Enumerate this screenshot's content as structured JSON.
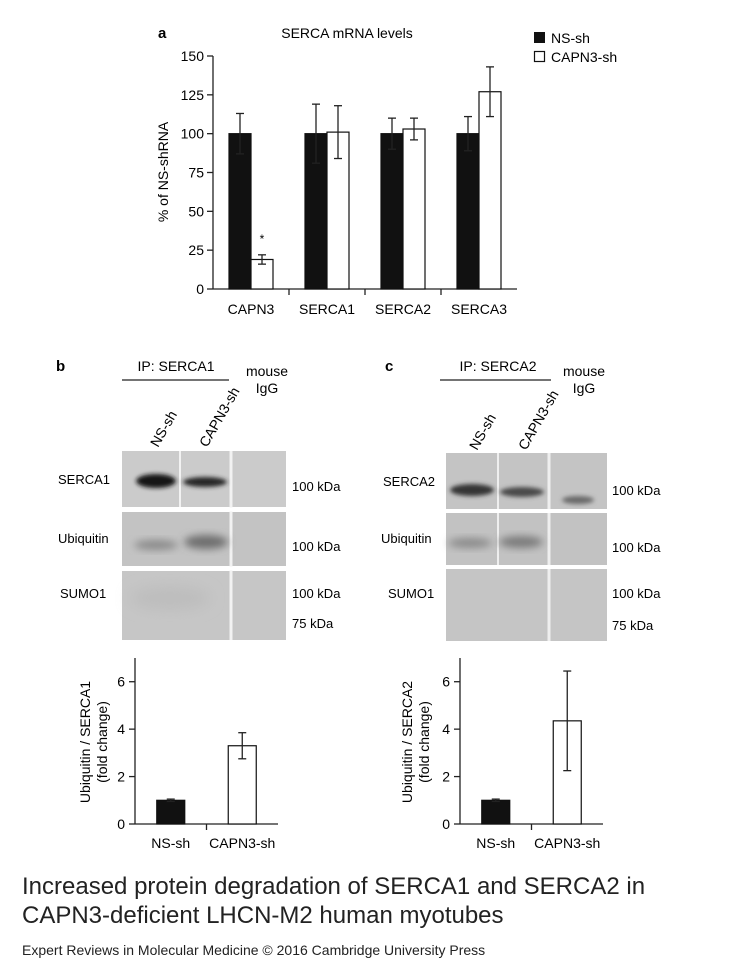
{
  "colors": {
    "filled": "#111111",
    "open": "#ffffff",
    "axis": "#222222",
    "blot_bg": "#c9c9c9",
    "blot_band": "#2a2a2a"
  },
  "panel_a": {
    "label": "a",
    "title": "SERCA mRNA levels",
    "legend": [
      "NS-sh",
      "CAPN3-sh"
    ],
    "ylabel": "% of NS-shRNA",
    "significance_mark": "*"
  },
  "panel_b": {
    "label": "b",
    "ip_label": "IP: SERCA1",
    "lanes": [
      "NS-sh",
      "CAPN3-sh"
    ],
    "control_label": [
      "mouse",
      "IgG"
    ],
    "rows": [
      "SERCA1",
      "Ubiquitin",
      "SUMO1"
    ],
    "markers": [
      [
        "100 kDa"
      ],
      [
        "100 kDa"
      ],
      [
        "100 kDa",
        "75 kDa"
      ]
    ],
    "ylabel": [
      "Ubiquitin / SERCA1",
      "(fold change)"
    ]
  },
  "panel_c": {
    "label": "c",
    "ip_label": "IP: SERCA2",
    "lanes": [
      "NS-sh",
      "CAPN3-sh"
    ],
    "control_label": [
      "mouse",
      "IgG"
    ],
    "rows": [
      "SERCA2",
      "Ubiquitin",
      "SUMO1"
    ],
    "markers": [
      [
        "100 kDa"
      ],
      [
        "100 kDa"
      ],
      [
        "100 kDa",
        "75 kDa"
      ]
    ],
    "ylabel": [
      "Ubiquitin / SERCA2",
      "(fold change)"
    ]
  },
  "caption": "Increased protein degradation of SERCA1 and SERCA2 in CAPN3-deficient LHCN-M2 human myotubes",
  "credit": "Expert Reviews in Molecular Medicine © 2016 Cambridge University Press",
  "chart_data": [
    {
      "id": "a",
      "type": "bar",
      "title": "SERCA mRNA levels",
      "ylabel": "% of NS-shRNA",
      "categories": [
        "CAPN3",
        "SERCA1",
        "SERCA2",
        "SERCA3"
      ],
      "series": [
        {
          "name": "NS-sh",
          "values": [
            100,
            100,
            100,
            100
          ],
          "errors": [
            13,
            19,
            10,
            11
          ],
          "fill": "#111111"
        },
        {
          "name": "CAPN3-sh",
          "values": [
            19,
            101,
            103,
            127
          ],
          "errors": [
            3,
            17,
            7,
            16
          ],
          "fill": "#ffffff"
        }
      ],
      "ylim": [
        0,
        150
      ],
      "yticks": [
        0,
        25,
        50,
        75,
        100,
        125,
        150
      ],
      "legend_position": "top-right",
      "grid": false
    },
    {
      "id": "b",
      "type": "bar",
      "ylabel": "Ubiquitin / SERCA1 (fold change)",
      "categories": [
        "NS-sh",
        "CAPN3-sh"
      ],
      "values": [
        1.0,
        3.3
      ],
      "errors": [
        0.05,
        0.55
      ],
      "fills": [
        "#111111",
        "#ffffff"
      ],
      "ylim": [
        0,
        7
      ],
      "yticks": [
        0,
        2,
        4,
        6
      ],
      "grid": false
    },
    {
      "id": "c",
      "type": "bar",
      "ylabel": "Ubiquitin / SERCA2 (fold change)",
      "categories": [
        "NS-sh",
        "CAPN3-sh"
      ],
      "values": [
        1.0,
        4.35
      ],
      "errors": [
        0.05,
        2.1
      ],
      "fills": [
        "#111111",
        "#ffffff"
      ],
      "ylim": [
        0,
        7
      ],
      "yticks": [
        0,
        2,
        4,
        6
      ],
      "grid": false
    }
  ]
}
